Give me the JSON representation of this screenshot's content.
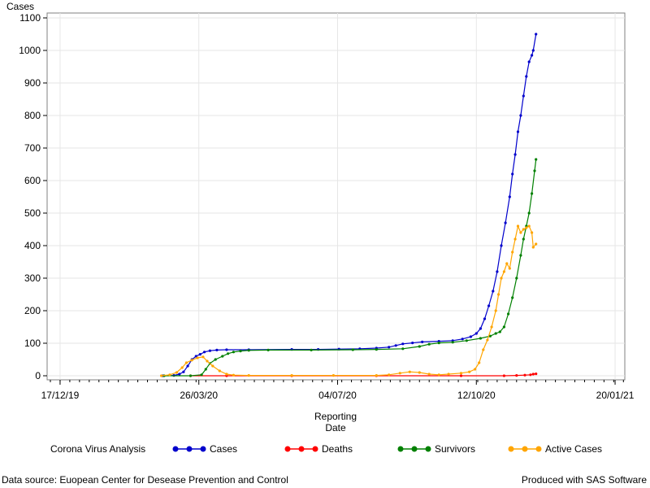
{
  "chart_data": {
    "type": "line",
    "title": "",
    "ylabel": "Cases",
    "xlabel_lines": [
      "Reporting",
      "Date"
    ],
    "x_axis": {
      "type": "date",
      "min": "2019-12-10",
      "max": "2021-01-27",
      "ticks": [
        {
          "date": "2019-12-17",
          "label": "17/12/19"
        },
        {
          "date": "2020-03-26",
          "label": "26/03/20"
        },
        {
          "date": "2020-07-04",
          "label": "04/07/20"
        },
        {
          "date": "2020-10-12",
          "label": "12/10/20"
        },
        {
          "date": "2021-01-20",
          "label": "20/01/21"
        }
      ]
    },
    "y_axis": {
      "min": 0,
      "max": 1100,
      "ticks": [
        0,
        100,
        200,
        300,
        400,
        500,
        600,
        700,
        800,
        900,
        1000,
        1100
      ]
    },
    "grid": true,
    "legend": {
      "title": "Corona Virus Analysis",
      "position": "bottom"
    },
    "series": [
      {
        "name": "Cases",
        "color": "#0000cc",
        "points": [
          [
            "2020-02-29",
            0
          ],
          [
            "2020-03-08",
            1
          ],
          [
            "2020-03-12",
            5
          ],
          [
            "2020-03-15",
            12
          ],
          [
            "2020-03-18",
            30
          ],
          [
            "2020-03-21",
            50
          ],
          [
            "2020-03-24",
            60
          ],
          [
            "2020-03-27",
            66
          ],
          [
            "2020-03-30",
            73
          ],
          [
            "2020-04-03",
            77
          ],
          [
            "2020-04-08",
            79
          ],
          [
            "2020-04-15",
            80
          ],
          [
            "2020-05-01",
            80
          ],
          [
            "2020-06-01",
            81
          ],
          [
            "2020-06-20",
            81
          ],
          [
            "2020-07-05",
            82
          ],
          [
            "2020-07-20",
            83
          ],
          [
            "2020-08-01",
            85
          ],
          [
            "2020-08-10",
            88
          ],
          [
            "2020-08-15",
            93
          ],
          [
            "2020-08-20",
            98
          ],
          [
            "2020-08-27",
            101
          ],
          [
            "2020-09-03",
            104
          ],
          [
            "2020-09-15",
            106
          ],
          [
            "2020-09-25",
            108
          ],
          [
            "2020-10-02",
            113
          ],
          [
            "2020-10-08",
            120
          ],
          [
            "2020-10-12",
            130
          ],
          [
            "2020-10-15",
            145
          ],
          [
            "2020-10-18",
            175
          ],
          [
            "2020-10-21",
            215
          ],
          [
            "2020-10-24",
            260
          ],
          [
            "2020-10-27",
            320
          ],
          [
            "2020-10-30",
            400
          ],
          [
            "2020-11-02",
            470
          ],
          [
            "2020-11-05",
            550
          ],
          [
            "2020-11-07",
            620
          ],
          [
            "2020-11-09",
            680
          ],
          [
            "2020-11-11",
            750
          ],
          [
            "2020-11-13",
            800
          ],
          [
            "2020-11-15",
            860
          ],
          [
            "2020-11-17",
            920
          ],
          [
            "2020-11-19",
            965
          ],
          [
            "2020-11-21",
            985
          ],
          [
            "2020-11-22",
            1000
          ],
          [
            "2020-11-24",
            1050
          ]
        ]
      },
      {
        "name": "Deaths",
        "color": "#ff0000",
        "points": [
          [
            "2020-03-20",
            0
          ],
          [
            "2020-04-15",
            0
          ],
          [
            "2020-06-01",
            0
          ],
          [
            "2020-08-01",
            0
          ],
          [
            "2020-10-01",
            0
          ],
          [
            "2020-11-01",
            0
          ],
          [
            "2020-11-10",
            1
          ],
          [
            "2020-11-16",
            2
          ],
          [
            "2020-11-20",
            3
          ],
          [
            "2020-11-22",
            5
          ],
          [
            "2020-11-24",
            6
          ]
        ]
      },
      {
        "name": "Survivors",
        "color": "#008000",
        "points": [
          [
            "2020-03-01",
            0
          ],
          [
            "2020-03-20",
            0
          ],
          [
            "2020-03-28",
            3
          ],
          [
            "2020-03-31",
            20
          ],
          [
            "2020-04-03",
            38
          ],
          [
            "2020-04-07",
            50
          ],
          [
            "2020-04-12",
            60
          ],
          [
            "2020-04-16",
            68
          ],
          [
            "2020-04-20",
            73
          ],
          [
            "2020-04-25",
            76
          ],
          [
            "2020-05-01",
            78
          ],
          [
            "2020-05-15",
            79
          ],
          [
            "2020-06-15",
            79
          ],
          [
            "2020-07-15",
            80
          ],
          [
            "2020-08-01",
            81
          ],
          [
            "2020-08-20",
            83
          ],
          [
            "2020-09-01",
            90
          ],
          [
            "2020-09-08",
            97
          ],
          [
            "2020-09-15",
            101
          ],
          [
            "2020-09-25",
            103
          ],
          [
            "2020-10-05",
            108
          ],
          [
            "2020-10-15",
            115
          ],
          [
            "2020-10-22",
            122
          ],
          [
            "2020-10-26",
            130
          ],
          [
            "2020-10-29",
            135
          ],
          [
            "2020-11-01",
            150
          ],
          [
            "2020-11-04",
            190
          ],
          [
            "2020-11-07",
            240
          ],
          [
            "2020-11-10",
            300
          ],
          [
            "2020-11-13",
            370
          ],
          [
            "2020-11-15",
            420
          ],
          [
            "2020-11-17",
            460
          ],
          [
            "2020-11-19",
            500
          ],
          [
            "2020-11-21",
            560
          ],
          [
            "2020-11-23",
            630
          ],
          [
            "2020-11-24",
            665
          ]
        ]
      },
      {
        "name": "Active Cases",
        "color": "#ffa500",
        "points": [
          [
            "2020-02-28",
            0
          ],
          [
            "2020-03-05",
            3
          ],
          [
            "2020-03-10",
            10
          ],
          [
            "2020-03-14",
            25
          ],
          [
            "2020-03-17",
            40
          ],
          [
            "2020-03-21",
            48
          ],
          [
            "2020-03-25",
            55
          ],
          [
            "2020-03-29",
            58
          ],
          [
            "2020-04-01",
            45
          ],
          [
            "2020-04-05",
            30
          ],
          [
            "2020-04-10",
            15
          ],
          [
            "2020-04-15",
            5
          ],
          [
            "2020-04-20",
            2
          ],
          [
            "2020-05-01",
            1
          ],
          [
            "2020-06-01",
            1
          ],
          [
            "2020-07-01",
            1
          ],
          [
            "2020-08-01",
            1
          ],
          [
            "2020-08-10",
            3
          ],
          [
            "2020-08-18",
            8
          ],
          [
            "2020-08-25",
            12
          ],
          [
            "2020-09-01",
            10
          ],
          [
            "2020-09-08",
            5
          ],
          [
            "2020-09-15",
            3
          ],
          [
            "2020-09-22",
            5
          ],
          [
            "2020-10-01",
            8
          ],
          [
            "2020-10-07",
            12
          ],
          [
            "2020-10-11",
            20
          ],
          [
            "2020-10-14",
            40
          ],
          [
            "2020-10-17",
            80
          ],
          [
            "2020-10-20",
            110
          ],
          [
            "2020-10-23",
            150
          ],
          [
            "2020-10-26",
            200
          ],
          [
            "2020-10-28",
            250
          ],
          [
            "2020-10-30",
            300
          ],
          [
            "2020-11-01",
            320
          ],
          [
            "2020-11-03",
            345
          ],
          [
            "2020-11-05",
            330
          ],
          [
            "2020-11-07",
            380
          ],
          [
            "2020-11-09",
            420
          ],
          [
            "2020-11-11",
            460
          ],
          [
            "2020-11-13",
            440
          ],
          [
            "2020-11-15",
            450
          ],
          [
            "2020-11-17",
            455
          ],
          [
            "2020-11-19",
            460
          ],
          [
            "2020-11-21",
            440
          ],
          [
            "2020-11-22",
            395
          ],
          [
            "2020-11-24",
            405
          ]
        ]
      }
    ]
  },
  "footer": {
    "source": "Data source: Euopean Center for Desease Prevention and Control",
    "credit": "Produced with SAS Software"
  }
}
